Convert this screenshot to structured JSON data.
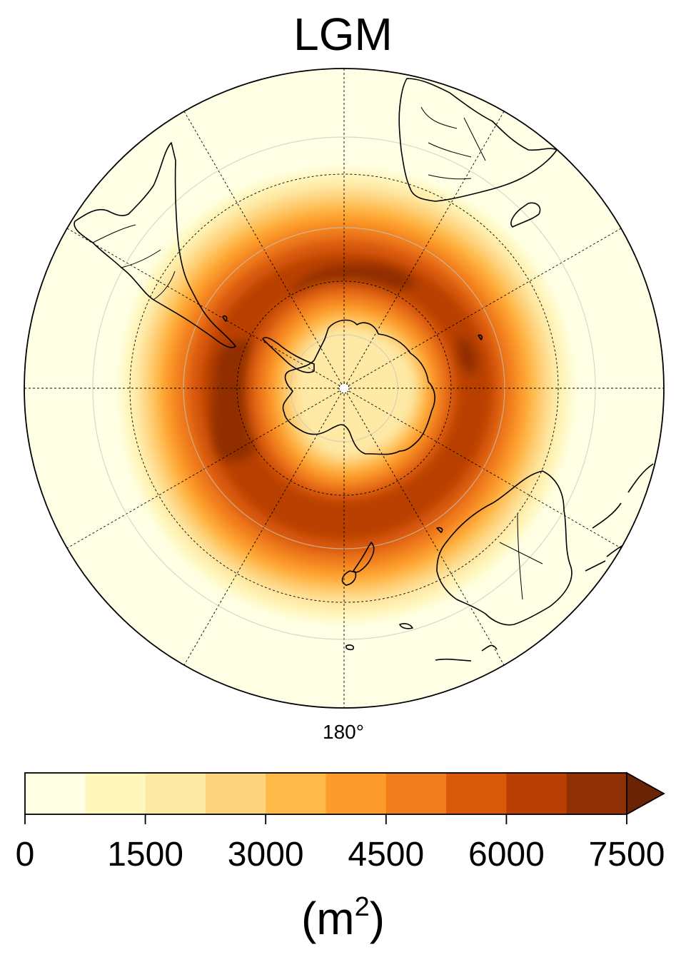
{
  "title": "LGM",
  "longitude_label": "180°",
  "colorbar": {
    "ticks": [
      "0",
      "1500",
      "3000",
      "4500",
      "6000",
      "7500"
    ],
    "units_prefix": "(m",
    "units_power": "2",
    "units_suffix": ")",
    "levels": [
      0,
      750,
      1500,
      2250,
      3000,
      3750,
      4500,
      5250,
      6000,
      6750,
      7500
    ],
    "colors": [
      "#ffffe5",
      "#fff7bc",
      "#fee9a5",
      "#fed47f",
      "#febb4a",
      "#fd9b2c",
      "#f07c1c",
      "#d9590b",
      "#b93f05",
      "#912f05",
      "#6a2304"
    ],
    "extend": "max"
  },
  "map": {
    "projection": "south polar stereographic",
    "gridlines": "dashed",
    "field_min_m2": 0,
    "field_max_m2": 7500
  }
}
